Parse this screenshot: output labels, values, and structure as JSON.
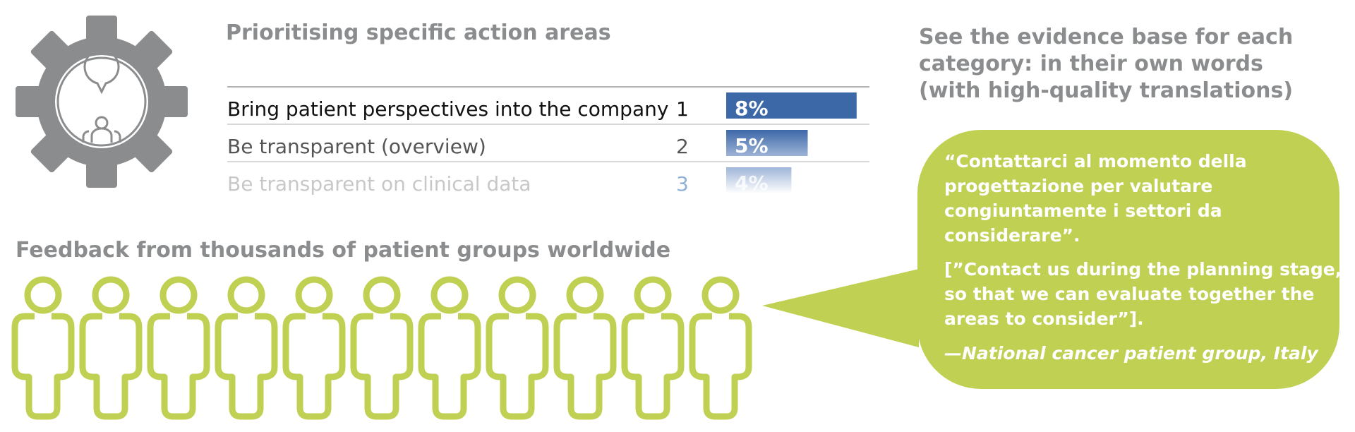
{
  "header": {
    "title": "Prioritising specific action areas"
  },
  "table": {
    "rows": [
      {
        "label": "Bring patient perspectives into the company",
        "rank": 1,
        "value": 8,
        "value_label": "8%"
      },
      {
        "label": "Be transparent (overview)",
        "rank": 2,
        "value": 5,
        "value_label": "5%"
      },
      {
        "label": "Be transparent on clinical data",
        "rank": 3,
        "value": 4,
        "value_label": "4%"
      }
    ]
  },
  "feedback": {
    "title": "Feedback from thousands of patient groups worldwide"
  },
  "evidence": {
    "title_lines": [
      "See the evidence base for each",
      "category:  in their own words",
      "(with high-quality translations)"
    ]
  },
  "quote": {
    "original_lines": [
      "“Contattarci al momento della",
      "progettazione per valutare",
      "congiuntamente i settori da",
      "considerare”."
    ],
    "translation_lines": [
      "[”Contact us during the planning stage,",
      "so that we can evaluate together the",
      "areas to consider”]."
    ],
    "attribution": "—National cancer patient group, Italy"
  }
}
